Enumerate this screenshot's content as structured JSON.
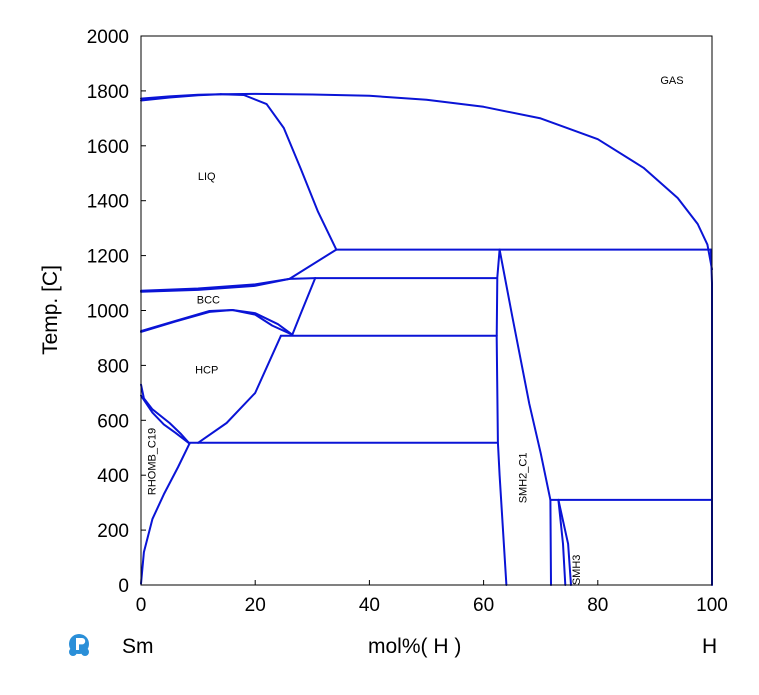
{
  "chart_data": {
    "type": "line",
    "ylabel": "Temp.  [C]",
    "xlabel": "mol%(  H  )",
    "x_left_label": "Sm",
    "x_right_label": "H",
    "xlim": [
      0,
      100
    ],
    "ylim": [
      0,
      2000
    ],
    "x_ticks": [
      "0",
      "20",
      "40",
      "60",
      "80",
      "100"
    ],
    "y_ticks": [
      "0",
      "200",
      "400",
      "600",
      "800",
      "1000",
      "1200",
      "1400",
      "1600",
      "1800",
      "2000"
    ],
    "line_color": "#0a14d6",
    "phase_labels": [
      {
        "text": "GAS",
        "x": 93,
        "y": 1840,
        "rotate": false
      },
      {
        "text": "LIQ",
        "x": 11.5,
        "y": 1490,
        "rotate": false
      },
      {
        "text": "BCC",
        "x": 11.8,
        "y": 1040,
        "rotate": false
      },
      {
        "text": "HCP",
        "x": 11.5,
        "y": 785,
        "rotate": false
      },
      {
        "text": "RHOMB_C19",
        "x": 1.8,
        "y": 450,
        "rotate": true
      },
      {
        "text": "SMH2_C1",
        "x": 66.8,
        "y": 390,
        "rotate": true
      },
      {
        "text": "SMH3",
        "x": 76.2,
        "y": 55,
        "rotate": true
      }
    ],
    "series": [
      {
        "points": [
          [
            0,
            1772
          ],
          [
            5,
            1780
          ],
          [
            10,
            1786
          ],
          [
            14,
            1788
          ]
        ]
      },
      {
        "points": [
          [
            0,
            1765
          ],
          [
            5,
            1776
          ],
          [
            10,
            1784
          ],
          [
            14,
            1788
          ]
        ]
      },
      {
        "points": [
          [
            14,
            1788
          ],
          [
            20,
            1789
          ],
          [
            30,
            1787
          ],
          [
            40,
            1782
          ],
          [
            50,
            1768
          ],
          [
            60,
            1742
          ],
          [
            70,
            1700
          ],
          [
            80,
            1624
          ],
          [
            88,
            1520
          ],
          [
            94,
            1410
          ],
          [
            97.5,
            1315
          ],
          [
            99.2,
            1240
          ],
          [
            100,
            1150
          ]
        ]
      },
      {
        "points": [
          [
            14,
            1788
          ],
          [
            18,
            1785
          ],
          [
            22,
            1752
          ],
          [
            25,
            1665
          ],
          [
            28,
            1515
          ],
          [
            31,
            1360
          ],
          [
            34.2,
            1222
          ]
        ]
      },
      {
        "points": [
          [
            34.2,
            1222
          ],
          [
            99.8,
            1222
          ]
        ]
      },
      {
        "points": [
          [
            26,
            1115
          ],
          [
            34.2,
            1222
          ]
        ]
      },
      {
        "points": [
          [
            0,
            1072
          ],
          [
            10,
            1080
          ],
          [
            20,
            1095
          ],
          [
            26,
            1115
          ],
          [
            30.5,
            1118
          ]
        ]
      },
      {
        "points": [
          [
            0,
            1068
          ],
          [
            10,
            1075
          ],
          [
            20,
            1090
          ],
          [
            26,
            1115
          ]
        ]
      },
      {
        "points": [
          [
            30.5,
            1118
          ],
          [
            62.3,
            1118
          ]
        ]
      },
      {
        "points": [
          [
            0,
            922
          ],
          [
            6,
            960
          ],
          [
            12,
            995
          ],
          [
            16,
            1002
          ],
          [
            20,
            990
          ],
          [
            24,
            950
          ],
          [
            26.5,
            912
          ]
        ]
      },
      {
        "points": [
          [
            0,
            925
          ],
          [
            6,
            962
          ],
          [
            12,
            998
          ],
          [
            16,
            1002
          ],
          [
            20,
            985
          ],
          [
            23,
            945
          ],
          [
            26.5,
            912
          ]
        ]
      },
      {
        "points": [
          [
            26.5,
            912
          ],
          [
            28,
            990
          ],
          [
            30.5,
            1118
          ]
        ]
      },
      {
        "points": [
          [
            24.5,
            908
          ],
          [
            62.3,
            908
          ]
        ]
      },
      {
        "points": [
          [
            0,
            730
          ],
          [
            0.5,
            680
          ],
          [
            2,
            640
          ],
          [
            5,
            590
          ],
          [
            7,
            550
          ],
          [
            8.5,
            515
          ]
        ]
      },
      {
        "points": [
          [
            0,
            690
          ],
          [
            2,
            628
          ],
          [
            4,
            585
          ],
          [
            6,
            555
          ],
          [
            8.5,
            515
          ]
        ]
      },
      {
        "points": [
          [
            10,
            518
          ],
          [
            15,
            590
          ],
          [
            20,
            700
          ],
          [
            24.5,
            908
          ]
        ]
      },
      {
        "points": [
          [
            0,
            5
          ],
          [
            0.5,
            120
          ],
          [
            2,
            240
          ],
          [
            4,
            330
          ],
          [
            6.5,
            430
          ],
          [
            8.5,
            515
          ]
        ]
      },
      {
        "points": [
          [
            8.5,
            518
          ],
          [
            62.3,
            518
          ]
        ]
      },
      {
        "points": [
          [
            62.8,
            1222
          ],
          [
            62.4,
            1120
          ],
          [
            62.3,
            900
          ],
          [
            62.5,
            520
          ],
          [
            62.8,
            400
          ],
          [
            64.0,
            0
          ]
        ]
      },
      {
        "points": [
          [
            62.8,
            1222
          ],
          [
            65,
            980
          ],
          [
            68,
            660
          ],
          [
            70,
            480
          ],
          [
            71.7,
            310
          ]
        ]
      },
      {
        "points": [
          [
            71.7,
            310
          ],
          [
            100,
            310
          ]
        ]
      },
      {
        "points": [
          [
            71.7,
            310
          ],
          [
            71.8,
            0
          ]
        ]
      },
      {
        "points": [
          [
            73.1,
            310
          ],
          [
            73.9,
            150
          ],
          [
            74.3,
            0
          ]
        ]
      },
      {
        "points": [
          [
            73.1,
            310
          ],
          [
            74.8,
            150
          ],
          [
            75.3,
            0
          ]
        ]
      },
      {
        "points": [
          [
            99.8,
            1222
          ],
          [
            100,
            1100
          ],
          [
            100,
            0
          ]
        ]
      }
    ]
  }
}
